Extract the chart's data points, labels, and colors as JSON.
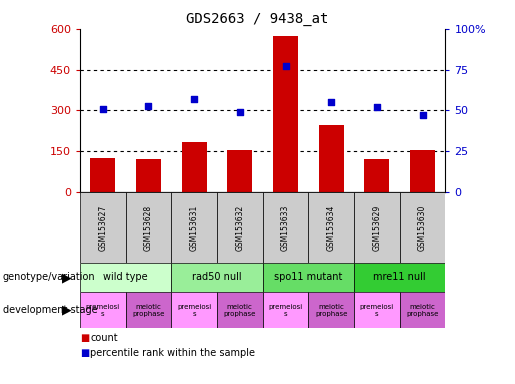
{
  "title": "GDS2663 / 9438_at",
  "samples": [
    "GSM153627",
    "GSM153628",
    "GSM153631",
    "GSM153632",
    "GSM153633",
    "GSM153634",
    "GSM153629",
    "GSM153630"
  ],
  "counts": [
    125,
    120,
    185,
    155,
    575,
    245,
    120,
    155
  ],
  "percentile_ranks": [
    51,
    53,
    57,
    49,
    77,
    55,
    52,
    47
  ],
  "ylim_left": [
    0,
    600
  ],
  "ylim_right": [
    0,
    100
  ],
  "yticks_left": [
    0,
    150,
    300,
    450,
    600
  ],
  "yticks_right": [
    0,
    25,
    50,
    75,
    100
  ],
  "ytick_labels_left": [
    "0",
    "150",
    "300",
    "450",
    "600"
  ],
  "ytick_labels_right": [
    "0",
    "25",
    "50",
    "75",
    "100%"
  ],
  "bar_color": "#cc0000",
  "dot_color": "#0000cc",
  "genotype_groups": [
    {
      "label": "wild type",
      "span": [
        0,
        2
      ]
    },
    {
      "label": "rad50 null",
      "span": [
        2,
        4
      ]
    },
    {
      "label": "spo11 mutant",
      "span": [
        4,
        6
      ]
    },
    {
      "label": "mre11 null",
      "span": [
        6,
        8
      ]
    }
  ],
  "geno_colors": [
    "#ccffcc",
    "#99ee99",
    "#66dd66",
    "#33cc33"
  ],
  "dev_stage_groups": [
    {
      "label": "premeiosi\ns",
      "span": [
        0,
        1
      ]
    },
    {
      "label": "meiotic\nprophase",
      "span": [
        1,
        2
      ]
    },
    {
      "label": "premeiosi\ns",
      "span": [
        2,
        3
      ]
    },
    {
      "label": "meiotic\nprophase",
      "span": [
        3,
        4
      ]
    },
    {
      "label": "premeiosi\ns",
      "span": [
        4,
        5
      ]
    },
    {
      "label": "meiotic\nprophase",
      "span": [
        5,
        6
      ]
    },
    {
      "label": "premeiosi\ns",
      "span": [
        6,
        7
      ]
    },
    {
      "label": "meiotic\nprophase",
      "span": [
        7,
        8
      ]
    }
  ],
  "dev_colors": [
    "#ff99ff",
    "#cc66cc"
  ],
  "legend_count_label": "count",
  "legend_pct_label": "percentile rank within the sample",
  "genotype_label": "genotype/variation",
  "dev_stage_label": "development stage",
  "background_color": "#ffffff",
  "sample_box_color": "#cccccc",
  "dotted_lines": [
    150,
    300,
    450
  ]
}
